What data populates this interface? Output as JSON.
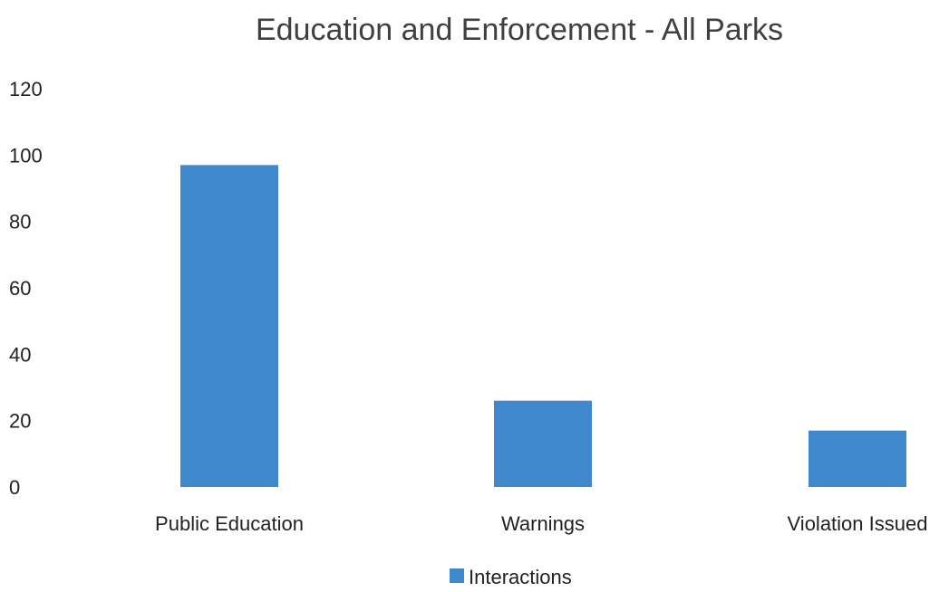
{
  "chart_data": {
    "type": "bar",
    "title": "Education and Enforcement - All Parks",
    "xlabel": "",
    "ylabel": "",
    "categories": [
      "Public Education",
      "Warnings",
      "Violation Issued"
    ],
    "series": [
      {
        "name": "Interactions",
        "values": [
          97,
          26,
          17
        ]
      }
    ],
    "ylim": [
      0,
      120
    ],
    "yticks": [
      0,
      20,
      40,
      60,
      80,
      100,
      120
    ],
    "grid": false,
    "legend": "bottom",
    "colors": {
      "bar": "#3f88cc",
      "text": "#222222",
      "title": "#404040"
    }
  }
}
